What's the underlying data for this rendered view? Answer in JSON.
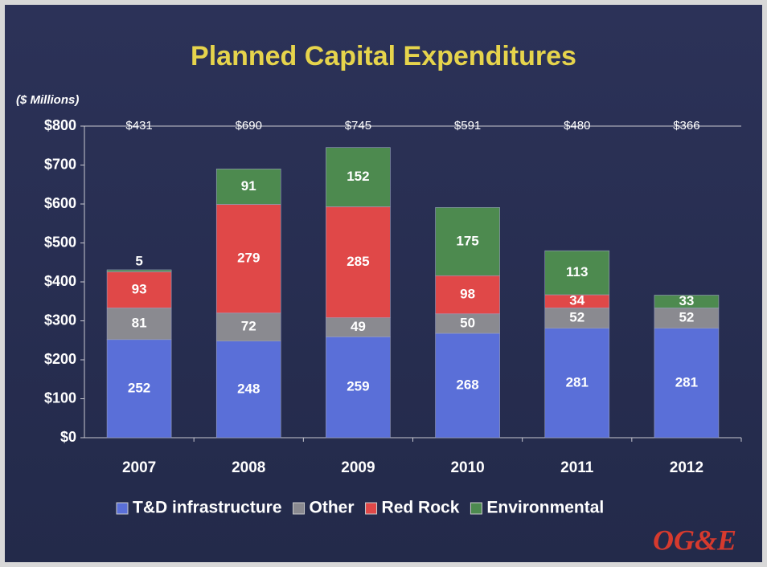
{
  "chart_data": {
    "type": "stacked_bar",
    "title": "Planned Capital Expenditures",
    "subtitle": "($ Millions)",
    "categories": [
      "2007",
      "2008",
      "2009",
      "2010",
      "2011",
      "2012"
    ],
    "series": [
      {
        "name": "T&D infrastructure",
        "color": "#5a6fd8",
        "values": [
          252,
          248,
          259,
          268,
          281,
          281
        ]
      },
      {
        "name": "Other",
        "color": "#8a8a90",
        "values": [
          81,
          72,
          49,
          50,
          52,
          52
        ]
      },
      {
        "name": "Red Rock",
        "color": "#e04848",
        "values": [
          93,
          279,
          285,
          98,
          34,
          null
        ]
      },
      {
        "name": "Environmental",
        "color": "#4d8a4f",
        "values": [
          5,
          91,
          152,
          175,
          113,
          33
        ]
      }
    ],
    "totals": {
      "values": [
        431,
        690,
        745,
        591,
        480,
        366
      ],
      "value_labels": [
        "$431",
        "$690",
        "$745",
        "$591",
        "$480",
        "$366"
      ]
    },
    "ylim": [
      0,
      800
    ],
    "yticks": [
      {
        "value": 0,
        "label": "$0"
      },
      {
        "value": 100,
        "label": "$100"
      },
      {
        "value": 200,
        "label": "$200"
      },
      {
        "value": 300,
        "label": "$300"
      },
      {
        "value": 400,
        "label": "$400"
      },
      {
        "value": 500,
        "label": "$500"
      },
      {
        "value": 600,
        "label": "$600"
      },
      {
        "value": 700,
        "label": "$700"
      },
      {
        "value": 800,
        "label": "$800"
      }
    ],
    "legend": "bottom",
    "logo": "OG&E"
  }
}
